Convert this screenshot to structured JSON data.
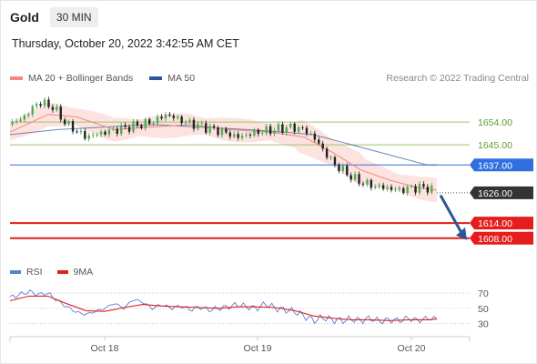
{
  "header": {
    "symbol": "Gold",
    "timeframe": "30 MIN"
  },
  "datetime": "Thursday, October 20, 2022 3:42:55 AM CET",
  "legend": [
    {
      "label": "MA 20 + Bollinger Bands",
      "color": "#f4877e"
    },
    {
      "label": "MA 50",
      "color": "#2b5797"
    }
  ],
  "credit": "Research © 2022 Trading Central",
  "rsi_legend": [
    {
      "label": "RSI",
      "color": "#5b7fd6"
    },
    {
      "label": "9MA",
      "color": "#e02020"
    }
  ],
  "chart_data": [
    {
      "type": "line",
      "subtype": "candlestick",
      "x_ticks": [
        "Oct 18",
        "Oct 19",
        "Oct 20"
      ],
      "ylim": [
        1600,
        1667
      ],
      "levels": [
        {
          "label": "1654.00",
          "value": 1654.0,
          "style": "resistance",
          "color": "#9bc56b"
        },
        {
          "label": "1645.00",
          "value": 1645.0,
          "style": "resistance",
          "color": "#9bc56b"
        },
        {
          "label": "1637.00",
          "value": 1637.0,
          "style": "pivot",
          "color": "#2f6fe0"
        },
        {
          "label": "1626.00",
          "value": 1626.0,
          "style": "last",
          "color": "#333333"
        },
        {
          "label": "1614.00",
          "value": 1614.0,
          "style": "support",
          "color": "#e51d1d"
        },
        {
          "label": "1608.00",
          "value": 1608.0,
          "style": "support",
          "color": "#e51d1d"
        }
      ],
      "price_path": [
        [
          0,
          1653
        ],
        [
          3,
          1656
        ],
        [
          6,
          1662
        ],
        [
          9,
          1660
        ],
        [
          12,
          1653
        ],
        [
          16,
          1648
        ],
        [
          20,
          1650
        ],
        [
          25,
          1652
        ],
        [
          30,
          1654
        ],
        [
          33,
          1657
        ],
        [
          37,
          1654
        ],
        [
          41,
          1652
        ],
        [
          45,
          1650
        ],
        [
          48,
          1648
        ],
        [
          52,
          1650
        ],
        [
          56,
          1651
        ],
        [
          59,
          1652
        ],
        [
          62,
          1651
        ],
        [
          64,
          1648
        ],
        [
          66,
          1643
        ],
        [
          68,
          1638
        ],
        [
          70,
          1635
        ],
        [
          73,
          1631
        ],
        [
          76,
          1629
        ],
        [
          79,
          1628
        ],
        [
          82,
          1627
        ],
        [
          85,
          1628
        ],
        [
          88,
          1628
        ],
        [
          90,
          1626
        ]
      ],
      "ma20": [
        [
          0,
          1650
        ],
        [
          8,
          1657
        ],
        [
          14,
          1656
        ],
        [
          22,
          1651
        ],
        [
          30,
          1652
        ],
        [
          38,
          1653
        ],
        [
          46,
          1651
        ],
        [
          55,
          1650
        ],
        [
          62,
          1648
        ],
        [
          68,
          1642
        ],
        [
          74,
          1635
        ],
        [
          80,
          1631
        ],
        [
          86,
          1628
        ],
        [
          90,
          1627
        ]
      ],
      "ma50": [
        [
          0,
          1649
        ],
        [
          10,
          1651
        ],
        [
          20,
          1652
        ],
        [
          30,
          1653
        ],
        [
          40,
          1652
        ],
        [
          50,
          1651
        ],
        [
          58,
          1650
        ],
        [
          64,
          1649
        ],
        [
          70,
          1646
        ],
        [
          76,
          1643
        ],
        [
          82,
          1640
        ],
        [
          88,
          1637
        ],
        [
          90,
          1637
        ]
      ],
      "direction": "down"
    },
    {
      "type": "line",
      "name": "RSI",
      "yticks": [
        70,
        50,
        30
      ],
      "ylim": [
        20,
        82
      ],
      "rsi": [
        [
          0,
          64
        ],
        [
          2,
          68
        ],
        [
          4,
          72
        ],
        [
          6,
          68
        ],
        [
          8,
          70
        ],
        [
          10,
          60
        ],
        [
          12,
          52
        ],
        [
          14,
          45
        ],
        [
          16,
          42
        ],
        [
          18,
          46
        ],
        [
          20,
          50
        ],
        [
          22,
          57
        ],
        [
          24,
          50
        ],
        [
          26,
          62
        ],
        [
          28,
          58
        ],
        [
          30,
          50
        ],
        [
          32,
          55
        ],
        [
          34,
          50
        ],
        [
          36,
          53
        ],
        [
          38,
          48
        ],
        [
          40,
          52
        ],
        [
          42,
          48
        ],
        [
          44,
          50
        ],
        [
          46,
          52
        ],
        [
          48,
          55
        ],
        [
          50,
          52
        ],
        [
          52,
          50
        ],
        [
          54,
          56
        ],
        [
          56,
          50
        ],
        [
          58,
          48
        ],
        [
          60,
          46
        ],
        [
          62,
          40
        ],
        [
          64,
          34
        ],
        [
          66,
          38
        ],
        [
          68,
          35
        ],
        [
          70,
          34
        ],
        [
          72,
          36
        ],
        [
          74,
          34
        ],
        [
          76,
          37
        ],
        [
          78,
          33
        ],
        [
          80,
          35
        ],
        [
          82,
          34
        ],
        [
          84,
          37
        ],
        [
          86,
          34
        ],
        [
          88,
          37
        ],
        [
          90,
          36
        ]
      ],
      "ma9": [
        [
          0,
          60
        ],
        [
          4,
          66
        ],
        [
          8,
          66
        ],
        [
          12,
          56
        ],
        [
          16,
          47
        ],
        [
          20,
          46
        ],
        [
          24,
          51
        ],
        [
          28,
          55
        ],
        [
          32,
          53
        ],
        [
          36,
          52
        ],
        [
          40,
          51
        ],
        [
          44,
          50
        ],
        [
          48,
          52
        ],
        [
          52,
          52
        ],
        [
          56,
          51
        ],
        [
          60,
          47
        ],
        [
          64,
          40
        ],
        [
          68,
          37
        ],
        [
          72,
          35
        ],
        [
          76,
          35
        ],
        [
          80,
          34
        ],
        [
          84,
          35
        ],
        [
          88,
          35
        ],
        [
          90,
          36
        ]
      ]
    }
  ]
}
